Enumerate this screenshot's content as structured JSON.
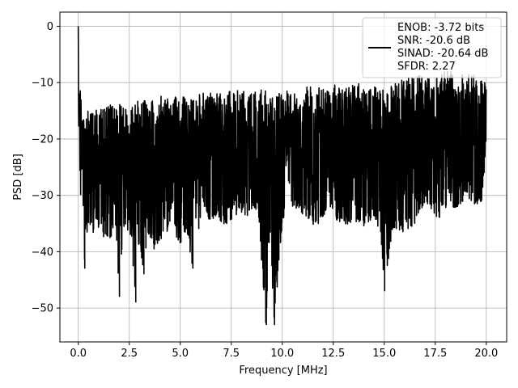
{
  "chart_data": {
    "type": "line",
    "title": "",
    "xlabel": "Frequency [MHz]",
    "ylabel": "PSD [dB]",
    "xlim": [
      -0.9,
      21.0
    ],
    "ylim": [
      -56,
      2.5
    ],
    "xticks": [
      0.0,
      2.5,
      5.0,
      7.5,
      10.0,
      12.5,
      15.0,
      17.5,
      20.0
    ],
    "xtick_labels": [
      "0.0",
      "2.5",
      "5.0",
      "7.5",
      "10.0",
      "12.5",
      "15.0",
      "17.5",
      "20.0"
    ],
    "yticks": [
      0,
      -10,
      -20,
      -30,
      -40,
      -50
    ],
    "ytick_labels": [
      "0",
      "−10",
      "−20",
      "−30",
      "−40",
      "−50"
    ],
    "grid": true,
    "legend": {
      "placement": "top-right",
      "lines": [
        "ENOB: -3.72 bits",
        "SNR: -20.6 dB",
        "SINAD: -20.64 dB",
        "SFDR: 2.27"
      ]
    },
    "series": [
      {
        "color": "#000000",
        "x": [
          0.0,
          0.02,
          0.05,
          0.08,
          0.1,
          0.15,
          0.2,
          0.25,
          0.3,
          0.35,
          0.4,
          0.5,
          0.6,
          0.8,
          1.0,
          1.2,
          1.5,
          1.8,
          2.0,
          2.2,
          2.5,
          2.8,
          3.0,
          3.2,
          3.5,
          3.8,
          4.0,
          4.3,
          4.6,
          5.0,
          5.3,
          5.6,
          6.0,
          6.4,
          6.8,
          7.2,
          7.6,
          8.0,
          8.4,
          8.8,
          9.2,
          9.4,
          9.6,
          10.0,
          10.4,
          10.8,
          11.2,
          11.6,
          12.0,
          12.4,
          12.8,
          13.2,
          13.6,
          14.0,
          14.4,
          14.8,
          15.0,
          15.4,
          15.8,
          16.2,
          16.6,
          17.0,
          17.4,
          17.8,
          18.2,
          18.6,
          19.0,
          19.4,
          19.8,
          20.0
        ],
        "y_upper": [
          0.0,
          -8.0,
          -10.0,
          -12.0,
          -9.0,
          -13.0,
          -14.0,
          -15.0,
          -13.5,
          -14.5,
          -15.0,
          -15.0,
          -14.5,
          -15.0,
          -14.0,
          -14.5,
          -14.0,
          -13.5,
          -14.0,
          -13.0,
          -14.0,
          -13.0,
          -13.5,
          -13.0,
          -13.5,
          -12.5,
          -12.0,
          -13.0,
          -12.5,
          -12.0,
          -12.5,
          -12.0,
          -12.0,
          -11.5,
          -11.5,
          -12.0,
          -11.0,
          -11.5,
          -11.0,
          -11.5,
          -11.0,
          -11.5,
          -11.0,
          -11.0,
          -11.5,
          -11.0,
          -10.5,
          -11.0,
          -10.5,
          -10.0,
          -10.5,
          -10.5,
          -10.0,
          -10.5,
          -10.0,
          -11.0,
          -10.0,
          -9.5,
          -9.5,
          -9.0,
          -9.0,
          -8.0,
          -9.5,
          -8.5,
          -7.5,
          -9.0,
          -8.0,
          -8.5,
          -9.0,
          -10.0
        ],
        "y_lower": [
          -10.0,
          -18.0,
          -22.0,
          -25.0,
          -34.0,
          -39.0,
          -31.0,
          -33.0,
          -43.0,
          -35.0,
          -37.0,
          -36.0,
          -41.0,
          -35.0,
          -36.0,
          -38.0,
          -39.0,
          -35.0,
          -48.0,
          -37.0,
          -36.0,
          -49.0,
          -38.0,
          -44.0,
          -39.0,
          -40.0,
          -38.0,
          -37.0,
          -36.0,
          -39.0,
          -36.0,
          -43.0,
          -35.0,
          -36.0,
          -34.0,
          -36.0,
          -34.0,
          -33.0,
          -34.0,
          -32.0,
          -53.0,
          -36.0,
          -53.0,
          -35.0,
          -32.0,
          -33.0,
          -34.0,
          -36.0,
          -34.0,
          -33.0,
          -35.0,
          -36.0,
          -35.0,
          -36.0,
          -34.0,
          -37.0,
          -47.0,
          -36.0,
          -37.0,
          -36.0,
          -35.0,
          -31.0,
          -33.0,
          -35.0,
          -32.0,
          -33.0,
          -30.0,
          -32.0,
          -31.0,
          -21.0
        ]
      }
    ]
  }
}
